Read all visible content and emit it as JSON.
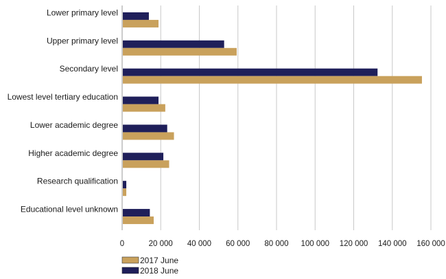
{
  "chart_data": {
    "type": "bar",
    "orientation": "horizontal",
    "categories": [
      "Lower primary level",
      "Upper primary level",
      "Secondary level",
      "Lowest level tertiary education",
      "Lower academic degree",
      "Higher academic degree",
      "Research qualification",
      "Educational level unknown"
    ],
    "series": [
      {
        "name": "2018 June",
        "color": "#1f1f5a",
        "values": [
          13500,
          52500,
          132000,
          18500,
          23000,
          21000,
          1800,
          14000
        ]
      },
      {
        "name": "2017 June",
        "color": "#c9a15c",
        "values": [
          18500,
          59000,
          155000,
          22000,
          26500,
          24000,
          1800,
          16000
        ]
      }
    ],
    "x_ticks": [
      "0",
      "20 000",
      "40 000",
      "60 000",
      "80 000",
      "100 000",
      "120 000",
      "140 000",
      "160 000"
    ],
    "xlim": [
      0,
      160000
    ],
    "grid": true,
    "legend": {
      "placement": "bottom-left",
      "entries": [
        {
          "name": "2017 June",
          "color": "#c9a15c"
        },
        {
          "name": "2018 June",
          "color": "#1f1f5a"
        }
      ]
    },
    "title": "",
    "xlabel": "",
    "ylabel": ""
  }
}
